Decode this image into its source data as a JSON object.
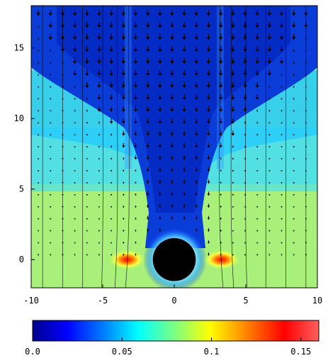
{
  "chart_data": {
    "type": "heatmap",
    "title": "",
    "xlabel": "",
    "ylabel": "",
    "xlim": [
      -10,
      10
    ],
    "ylim": [
      -2,
      18
    ],
    "x_ticks": [
      -10,
      -5,
      0,
      5,
      10
    ],
    "x_tick_labels": [
      "-10",
      "-5",
      "0",
      "5",
      "10"
    ],
    "y_ticks": [
      0,
      5,
      10,
      15
    ],
    "y_tick_labels": [
      "0",
      "5",
      "10",
      "15"
    ],
    "colorbar": {
      "range": [
        0.0,
        0.16
      ],
      "ticks": [
        0.0,
        0.05,
        0.1,
        0.15
      ],
      "tick_labels": [
        "0.0",
        "0.05",
        "0.1",
        "0.15"
      ],
      "colormap": "jet",
      "orientation": "horizontal",
      "placement": "bottom"
    },
    "central_body": {
      "x": 0,
      "y": 0,
      "radius": 1.5,
      "color": "#000000"
    },
    "hot_spots": [
      {
        "x": -3.3,
        "y": 0,
        "value": 0.16
      },
      {
        "x": 3.3,
        "y": 0,
        "value": 0.16
      }
    ],
    "vector_field": {
      "description_visible": "arrows",
      "direction": "downward",
      "color": "#000000"
    },
    "grid": false,
    "legend": "none"
  }
}
